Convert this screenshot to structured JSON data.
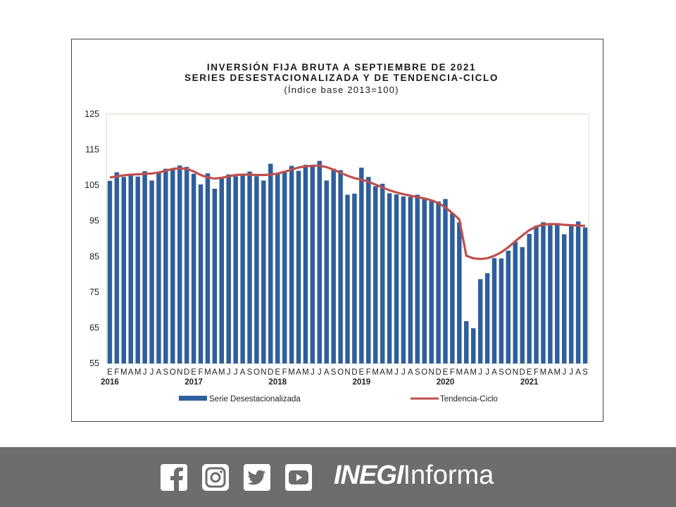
{
  "chart_data": {
    "type": "bar",
    "title_lines": [
      "INVERSIÓN FIJA BRUTA A SEPTIEMBRE DE 2021",
      "SERIES DESESTACIONALIZADA Y DE TENDENCIA-CICLO",
      "(Índice base 2013=100)"
    ],
    "ylim": [
      55,
      125
    ],
    "yticks": [
      "125",
      "115",
      "105",
      "95",
      "85",
      "75",
      "65",
      "55"
    ],
    "month_labels": [
      "E",
      "F",
      "M",
      "A",
      "M",
      "J",
      "J",
      "A",
      "S",
      "O",
      "N",
      "D"
    ],
    "year_labels": [
      "2016",
      "2017",
      "2018",
      "2019",
      "2020",
      "2021"
    ],
    "series": [
      {
        "name": "Serie Desestacionalizada",
        "kind": "bar",
        "color": "#2e5f9e",
        "values": [
          106.2,
          108.6,
          107.3,
          108.0,
          107.4,
          108.9,
          106.3,
          108.5,
          109.6,
          109.6,
          110.5,
          110.1,
          108.2,
          105.2,
          108.3,
          104.0,
          106.9,
          108.0,
          107.5,
          108.2,
          108.8,
          107.5,
          106.3,
          111.0,
          108.4,
          109.0,
          110.4,
          109.0,
          110.7,
          110.5,
          111.8,
          106.3,
          109.6,
          109.2,
          102.3,
          102.6,
          109.9,
          107.3,
          104.7,
          105.4,
          102.7,
          102.4,
          101.8,
          101.7,
          102.3,
          101.2,
          100.5,
          100.4,
          101.1,
          97.1,
          94.5,
          66.8,
          64.8,
          78.6,
          80.3,
          84.5,
          84.4,
          86.6,
          89.1,
          87.6,
          91.3,
          93.6,
          94.6,
          93.7,
          94.2,
          91.2,
          94.0,
          94.8,
          93.1
        ]
      },
      {
        "name": "Tendencia-Ciclo",
        "kind": "line",
        "color": "#c0504d",
        "values": [
          107.2,
          107.5,
          107.8,
          108.0,
          108.1,
          108.2,
          108.3,
          108.6,
          109.1,
          109.6,
          109.8,
          109.6,
          108.9,
          107.9,
          107.2,
          106.9,
          107.1,
          107.5,
          107.9,
          108.0,
          108.0,
          107.9,
          107.9,
          108.0,
          108.3,
          108.8,
          109.4,
          110.0,
          110.3,
          110.5,
          110.5,
          110.1,
          109.4,
          108.5,
          107.7,
          107.0,
          106.6,
          106.0,
          105.2,
          104.4,
          103.6,
          103.0,
          102.5,
          102.1,
          101.7,
          101.3,
          100.8,
          100.0,
          98.8,
          97.2,
          95.4,
          85.2,
          84.5,
          84.3,
          84.5,
          85.2,
          86.2,
          87.6,
          89.3,
          90.9,
          92.4,
          93.4,
          94.0,
          94.1,
          94.1,
          93.9,
          93.8,
          93.7,
          93.6
        ]
      }
    ],
    "legend_placement": "bottom"
  },
  "footer": {
    "brand_bold": "INEGI",
    "brand_light": "Informa",
    "social_icons": [
      "facebook-icon",
      "instagram-icon",
      "twitter-icon",
      "youtube-icon"
    ],
    "background": "#6d6d6d"
  }
}
